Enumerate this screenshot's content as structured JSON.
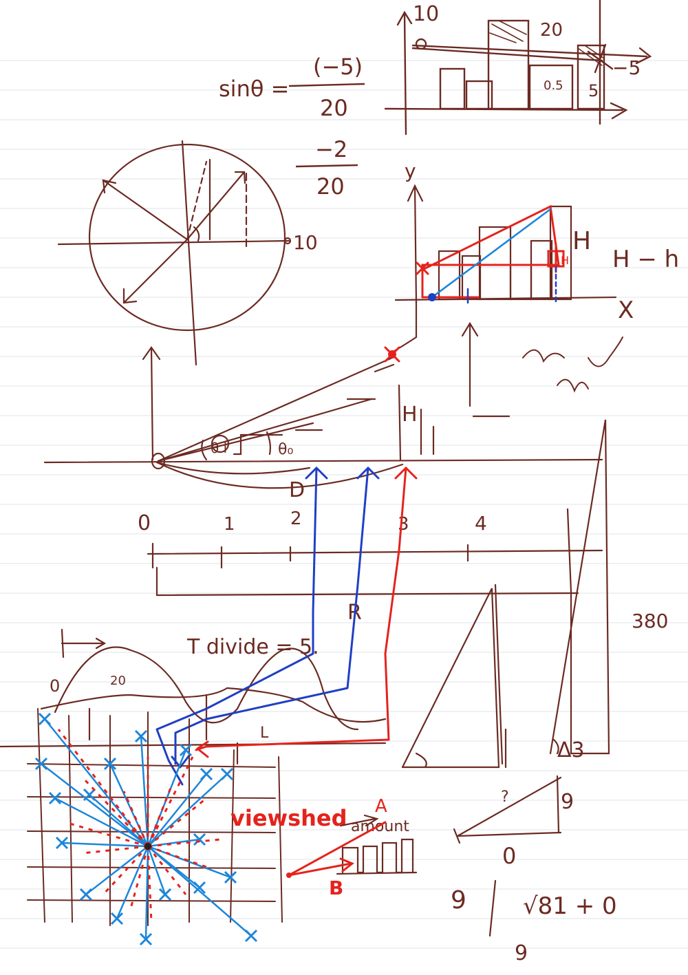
{
  "colors": {
    "paper": "#ffffff",
    "ruled_line": "#dfe3ea",
    "ink_brown": "#6b2a22",
    "ink_red": "#e4231c",
    "ink_blue": "#1f3fc4",
    "ink_lightblue": "#1c86d9"
  },
  "sine_note": {
    "lhs": "sinθ =",
    "num": "(−5)",
    "den": "20"
  },
  "fraction_note": {
    "num": "−2",
    "den": "20"
  },
  "top_chart": {
    "y_top": "10",
    "box_label": "20",
    "bar_label": "0.5",
    "bar_label2": "5",
    "right_label": "−5"
  },
  "circle": {
    "axis_label": "10"
  },
  "height_chart": {
    "y_axis": "y",
    "x_axis": "X",
    "h_label": "H",
    "h_diff": "H − h",
    "h_small": "H"
  },
  "profile": {
    "theta_label": "θ i",
    "theta0_label": "θ₀",
    "d_label": "D",
    "h_label": "H"
  },
  "scale": {
    "ticks": [
      "0",
      "1",
      "2",
      "3",
      "4"
    ]
  },
  "middle": {
    "r_label": "R",
    "t_divide": "T divide = 5.",
    "zero": "0",
    "twenty": "20",
    "l_label": "L"
  },
  "right_side": {
    "count": "380",
    "delta1": "Δ",
    "delta3": "Δ3"
  },
  "viewshed": {
    "title": "viewshed",
    "amount": "amount",
    "a_label": "A",
    "b_label": "B"
  },
  "bottom_right": {
    "nine": "9",
    "zero": "0",
    "nine2": "9",
    "sqrt": "√81 + 0",
    "nine3": "9",
    "q": "?"
  }
}
